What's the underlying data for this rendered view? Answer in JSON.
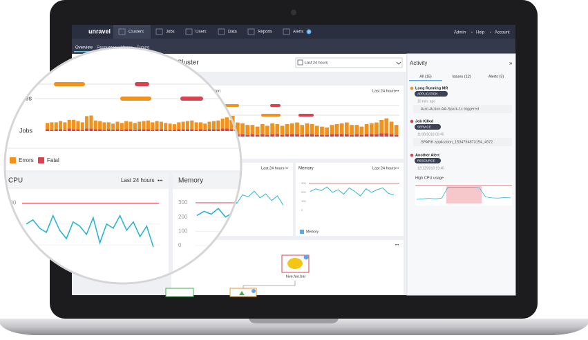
{
  "nav": {
    "logo": "unravel",
    "items": [
      "Clusters",
      "Jobs",
      "Users",
      "Data",
      "Reports",
      "Alerts"
    ],
    "alerts_badge": "3",
    "right": [
      "Admin",
      "Help",
      "Account"
    ]
  },
  "subnav": [
    "Overview",
    "Resources",
    "Usage",
    "Tuning"
  ],
  "page_title": "Cluster",
  "date_range": "Last 24 hours",
  "timeline_panel": {
    "title_fragment": "tion",
    "range": "Last 24 hours",
    "more": "•••",
    "row_labels": [
      "ces",
      "Jobs"
    ],
    "errors": [
      10,
      12,
      11,
      13,
      12,
      14,
      15,
      13,
      12,
      20,
      21,
      14,
      13,
      12,
      11,
      10,
      12,
      11,
      13,
      12,
      11,
      12,
      13,
      14,
      12,
      13,
      12,
      11,
      10,
      9,
      11,
      12,
      13,
      14,
      12,
      11,
      10,
      12,
      13,
      14,
      16,
      18,
      15,
      12
    ],
    "fatal": [
      3,
      2,
      3,
      3,
      2,
      4,
      3,
      3,
      2,
      4,
      4,
      3,
      3,
      2,
      3,
      2,
      3,
      2,
      3,
      3,
      2,
      3,
      3,
      3,
      2,
      3,
      3,
      2,
      2,
      2,
      3,
      3,
      3,
      3,
      2,
      3,
      2,
      3,
      3,
      3,
      4,
      4,
      3,
      2
    ],
    "legend": [
      "Errors",
      "Fatal"
    ]
  },
  "cpu_panel": {
    "title": "CPU",
    "range": "Last 24 hours",
    "more": "•••",
    "yticks": [
      300,
      200,
      100
    ],
    "ylim": [
      0,
      350
    ],
    "threshold": 300,
    "values": [
      200,
      220,
      180,
      160,
      240,
      170,
      130,
      210,
      190,
      150,
      230,
      110,
      200,
      180,
      240,
      170,
      210,
      140,
      190,
      90
    ]
  },
  "memory_panel": {
    "title": "Memory",
    "range": "Last 24 hours",
    "more": "•••",
    "legend": "Memory",
    "yticks": [
      300,
      200,
      100,
      0
    ],
    "ylim": [
      0,
      330
    ],
    "threshold": 300,
    "values": [
      210,
      240,
      220,
      260,
      200,
      230,
      180,
      250,
      210,
      160,
      240,
      200,
      230,
      250,
      190,
      170
    ]
  },
  "graph_panel": {
    "more": "•••",
    "node": "hive.foo.bar"
  },
  "activity": {
    "title": "Activity",
    "collapse": "»",
    "tabs": [
      "All (15)",
      "Issues (12)",
      "Alerts (3)"
    ],
    "items": [
      {
        "title": "Long Running MR",
        "badge": "APPLICATION",
        "time": "10 min. ago",
        "detail": "Auto-Action AA-Spark-1c triggered"
      },
      {
        "title": "Job Killed",
        "badge": "SERVICE",
        "time": "11/30/2018 09:45",
        "detail": "SPARK application_1534794873154_4972"
      },
      {
        "title": "Another Alert",
        "badge": "RESOURCE",
        "time": "12/12/2018 19:40",
        "detail": "High CPU usage"
      }
    ],
    "chart": [
      20,
      22,
      24,
      22,
      25,
      70,
      70,
      70,
      70,
      70,
      68,
      30,
      26,
      25,
      27,
      26
    ]
  }
}
